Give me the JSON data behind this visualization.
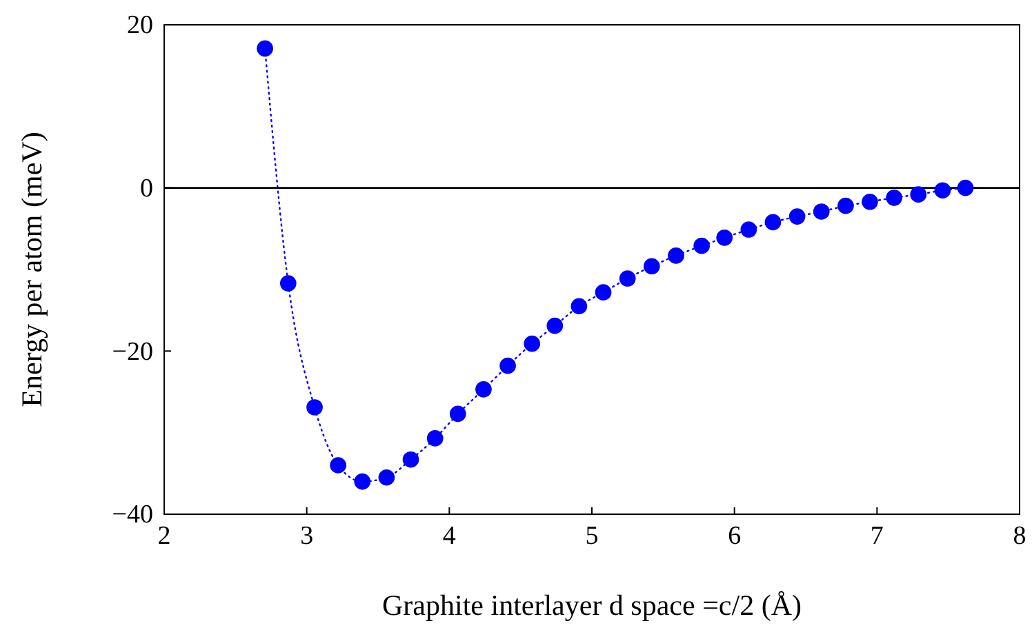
{
  "chart_data": {
    "type": "line",
    "xlabel": "Graphite interlayer d space =c/2 (Å)",
    "ylabel": "Energy per atom (meV)",
    "x": [
      2.707,
      2.87,
      3.055,
      3.22,
      3.39,
      3.56,
      3.73,
      3.9,
      4.06,
      4.24,
      4.41,
      4.58,
      4.74,
      4.91,
      5.08,
      5.25,
      5.42,
      5.59,
      5.77,
      5.93,
      6.1,
      6.27,
      6.44,
      6.61,
      6.78,
      6.95,
      7.12,
      7.29,
      7.46,
      7.62
    ],
    "series": [
      {
        "color": "#0000ff",
        "values": [
          17.1,
          -11.7,
          -26.9,
          -34.0,
          -36.0,
          -35.5,
          -33.3,
          -30.7,
          -27.7,
          -24.7,
          -21.8,
          -19.1,
          -16.9,
          -14.5,
          -12.8,
          -11.1,
          -9.6,
          -8.3,
          -7.1,
          -6.1,
          -5.1,
          -4.2,
          -3.5,
          -2.9,
          -2.2,
          -1.7,
          -1.2,
          -0.8,
          -0.3,
          0
        ]
      }
    ],
    "xlim": [
      2,
      8
    ],
    "xticks": [
      2,
      3,
      4,
      5,
      6,
      7,
      8
    ],
    "ylim": [
      -40,
      20
    ],
    "yticks": [
      {
        "value": -40,
        "label": "−40"
      },
      {
        "value": -20,
        "label": "−20"
      },
      0,
      20
    ],
    "ref_lines": [
      {
        "axis": "y",
        "value": 0,
        "color": "#000000"
      }
    ],
    "marker": "circle",
    "line_style": "dotted"
  }
}
